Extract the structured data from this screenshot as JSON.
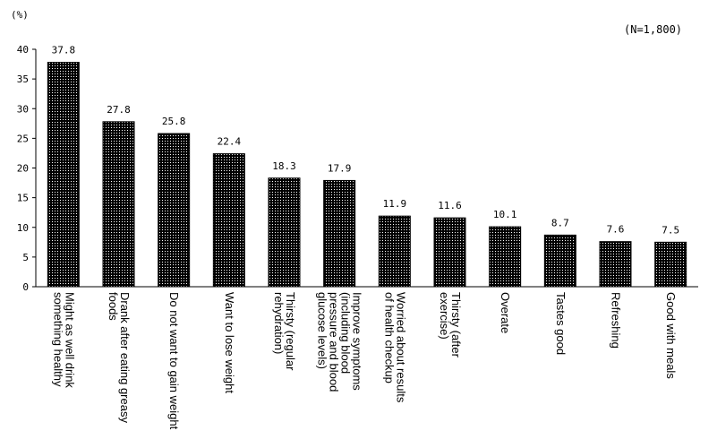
{
  "chart_data": {
    "type": "bar",
    "unit_label": "(%)",
    "sample_label": "(N=1,800)",
    "categories": [
      [
        "Might as well drink",
        "something healthy"
      ],
      [
        "Drank after eating greasy",
        "foods"
      ],
      [
        "Do not want to gain weight"
      ],
      [
        "Want to lose weight"
      ],
      [
        "Thirsty (regular",
        "rehydration)"
      ],
      [
        "Improve symptoms",
        "(including blood",
        "pressure and blood",
        "glucose levels)"
      ],
      [
        "Worried about results",
        "of health checkup"
      ],
      [
        "Thirsty (after",
        "exercise)"
      ],
      [
        "Overate"
      ],
      [
        "Tastes good"
      ],
      [
        "Refreshing"
      ],
      [
        "Good with meals"
      ]
    ],
    "values": [
      37.8,
      27.8,
      25.8,
      22.4,
      18.3,
      17.9,
      11.9,
      11.6,
      10.1,
      8.7,
      7.6,
      7.5
    ],
    "value_labels": [
      "37.8",
      "27.8",
      "25.8",
      "22.4",
      "18.3",
      "17.9",
      "11.9",
      "11.6",
      "10.1",
      "8.7",
      "7.6",
      "7.5"
    ],
    "ylim": [
      0,
      40
    ],
    "yticks": [
      0,
      5,
      10,
      15,
      20,
      25,
      30,
      35,
      40
    ],
    "bar_color": "#000000",
    "bar_pattern": "white-dots",
    "grid": false,
    "legend": "none"
  }
}
